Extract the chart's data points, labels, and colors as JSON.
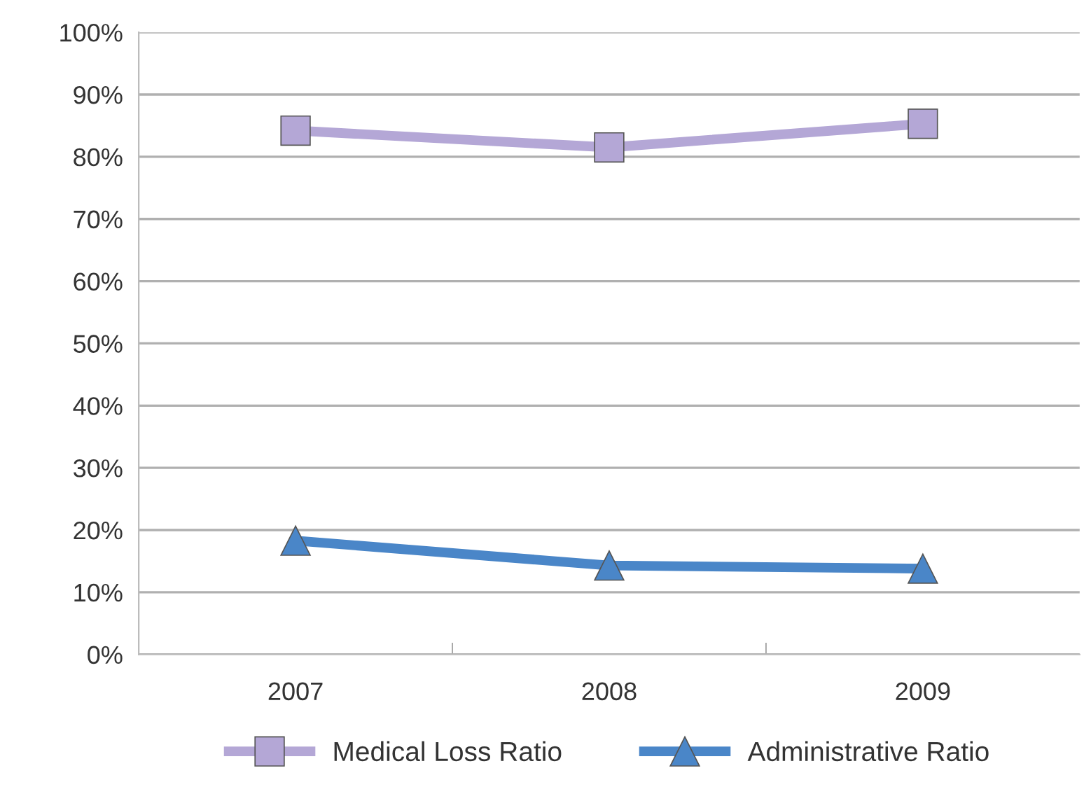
{
  "chart_data": {
    "type": "line",
    "categories": [
      "2007",
      "2008",
      "2009"
    ],
    "series": [
      {
        "name": "Medical Loss Ratio",
        "color": "#b4a7d6",
        "marker": "square",
        "values": [
          84.2,
          81.5,
          85.3
        ]
      },
      {
        "name": "Administrative Ratio",
        "color": "#4a86c8",
        "marker": "triangle",
        "values": [
          18.3,
          14.3,
          13.8
        ]
      }
    ],
    "ylim": [
      0,
      100
    ],
    "yticks": [
      {
        "value": 0,
        "label": "0%"
      },
      {
        "value": 10,
        "label": "10%"
      },
      {
        "value": 20,
        "label": "20%"
      },
      {
        "value": 30,
        "label": "30%"
      },
      {
        "value": 40,
        "label": "40%"
      },
      {
        "value": 50,
        "label": "50%"
      },
      {
        "value": 60,
        "label": "60%"
      },
      {
        "value": 70,
        "label": "70%"
      },
      {
        "value": 80,
        "label": "80%"
      },
      {
        "value": 90,
        "label": "90%"
      },
      {
        "value": 100,
        "label": "100%"
      }
    ],
    "grid": "y",
    "legend": "bottom",
    "line_style": "solid"
  }
}
